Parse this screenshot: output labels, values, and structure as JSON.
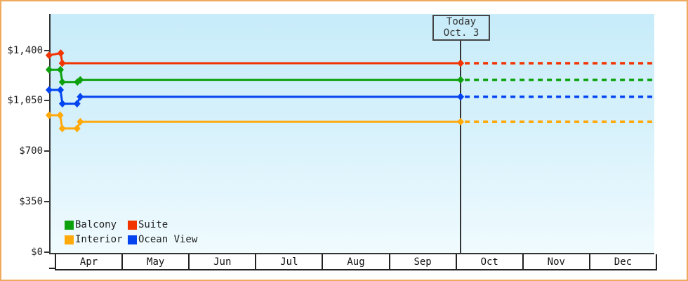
{
  "window": {
    "border_color": "#eeab5e",
    "background_color": "#ffffff",
    "plot_bg_top": "#c8ecfa",
    "plot_bg_bottom": "#f0fbfe",
    "axis_color": "#343434"
  },
  "chart_data": {
    "type": "line",
    "title": "",
    "description": "Cruise cabin price history by category; solid lines are recorded prices, dotted lines are flat projections after today",
    "x_axis": {
      "months": [
        "Apr",
        "May",
        "Jun",
        "Jul",
        "Aug",
        "Sep",
        "Oct",
        "Nov",
        "Dec"
      ],
      "x_unit": "month_index (0 = Apr 1, 9 = end of Dec)"
    },
    "y_axis": {
      "tick_labels": [
        "$1,400",
        "$1,050",
        "$700",
        "$350",
        "$0"
      ],
      "tick_values": [
        1400,
        1050,
        700,
        350,
        0
      ],
      "ylim": [
        0,
        1650
      ],
      "currency": "USD"
    },
    "today_marker": {
      "line1": "Today",
      "line2": "Oct. 3",
      "month_fraction": 6.095
    },
    "projection": {
      "style": "dotted",
      "from": "today",
      "to_month_fraction": 9.0
    },
    "series": [
      {
        "name": "Interior",
        "color": "#ffa90a",
        "points": [
          [
            -0.085,
            950
          ],
          [
            0.08,
            950
          ],
          [
            0.113,
            858
          ],
          [
            0.335,
            858
          ],
          [
            0.383,
            905
          ],
          [
            6.095,
            905
          ]
        ],
        "value_today": 905
      },
      {
        "name": "Ocean View",
        "color": "#0444f0",
        "points": [
          [
            -0.085,
            1125
          ],
          [
            0.085,
            1125
          ],
          [
            0.115,
            1030
          ],
          [
            0.335,
            1030
          ],
          [
            0.383,
            1078
          ],
          [
            6.095,
            1078
          ]
        ],
        "value_today": 1078
      },
      {
        "name": "Balcony",
        "color": "#0ea10e",
        "points": [
          [
            -0.085,
            1265
          ],
          [
            0.085,
            1265
          ],
          [
            0.113,
            1180
          ],
          [
            0.34,
            1180
          ],
          [
            0.383,
            1195
          ],
          [
            6.095,
            1195
          ]
        ],
        "value_today": 1195
      },
      {
        "name": "Suite",
        "color": "#f23400",
        "points": [
          [
            -0.085,
            1365
          ],
          [
            0.09,
            1380
          ],
          [
            0.113,
            1310
          ],
          [
            6.095,
            1310
          ]
        ],
        "value_today": 1310
      }
    ],
    "legend": {
      "position": "bottom-left",
      "items": [
        {
          "label": "Balcony",
          "color": "#0ea10e"
        },
        {
          "label": "Suite",
          "color": "#f23400"
        },
        {
          "label": "Interior",
          "color": "#ffa90a"
        },
        {
          "label": "Ocean View",
          "color": "#0444f0"
        }
      ]
    }
  }
}
